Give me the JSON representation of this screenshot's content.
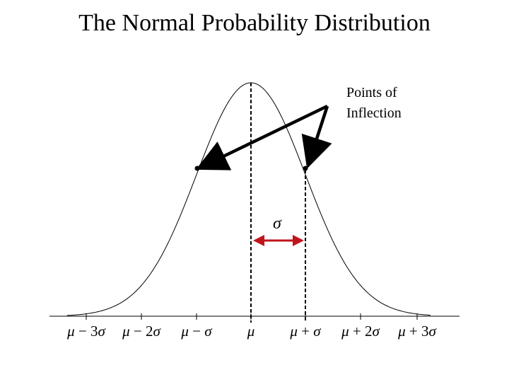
{
  "title": "The Normal Probability Distribution",
  "annotation": {
    "line1": "Points of",
    "line2": "Inflection"
  },
  "sigma_marker": "σ",
  "tick_labels": [
    {
      "mu": "μ",
      "op": " − 3",
      "sym": "σ"
    },
    {
      "mu": "μ",
      "op": " − 2",
      "sym": "σ"
    },
    {
      "mu": "μ",
      "op": " − ",
      "sym": "σ"
    },
    {
      "mu": "μ",
      "op": "",
      "sym": ""
    },
    {
      "mu": "μ",
      "op": " + ",
      "sym": "σ"
    },
    {
      "mu": "μ",
      "op": " + 2",
      "sym": "σ"
    },
    {
      "mu": "μ",
      "op": " + 3",
      "sym": "σ"
    }
  ],
  "colors": {
    "curve": "#000000",
    "arrow_black": "#000000",
    "arrow_red": "#c0141c"
  }
}
